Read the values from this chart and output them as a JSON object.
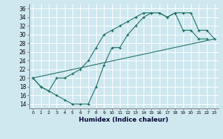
{
  "xlabel": "Humidex (Indice chaleur)",
  "ylabel": "",
  "xlim": [
    -0.5,
    23.5
  ],
  "ylim": [
    13,
    37
  ],
  "yticks": [
    14,
    16,
    18,
    20,
    22,
    24,
    26,
    28,
    30,
    32,
    34,
    36
  ],
  "xticks": [
    0,
    1,
    2,
    3,
    4,
    5,
    6,
    7,
    8,
    9,
    10,
    11,
    12,
    13,
    14,
    15,
    16,
    17,
    18,
    19,
    20,
    21,
    22,
    23
  ],
  "bg_color": "#cfe8f0",
  "grid_color": "#ffffff",
  "line_color": "#1a6e60",
  "series": [
    {
      "x": [
        0,
        1,
        3,
        4,
        5,
        6,
        7,
        8,
        9,
        10,
        11,
        12,
        13,
        14,
        15,
        16,
        17,
        18,
        19,
        20,
        21,
        22
      ],
      "y": [
        20,
        18,
        16,
        15,
        14,
        14,
        14,
        18,
        23,
        27,
        27,
        30,
        32,
        34,
        35,
        35,
        34,
        35,
        31,
        31,
        29,
        29
      ],
      "marker": true
    },
    {
      "x": [
        0,
        1,
        2,
        3,
        4,
        5,
        6,
        7,
        8,
        9,
        10,
        11,
        12,
        13,
        14,
        15,
        16,
        17,
        18,
        19,
        20,
        21,
        22,
        23
      ],
      "y": [
        20,
        18,
        17,
        20,
        20,
        21,
        22,
        24,
        27,
        30,
        31,
        32,
        33,
        34,
        35,
        35,
        35,
        34,
        35,
        35,
        35,
        31,
        31,
        29
      ],
      "marker": true
    },
    {
      "x": [
        0,
        23
      ],
      "y": [
        20,
        29
      ],
      "marker": false
    }
  ]
}
